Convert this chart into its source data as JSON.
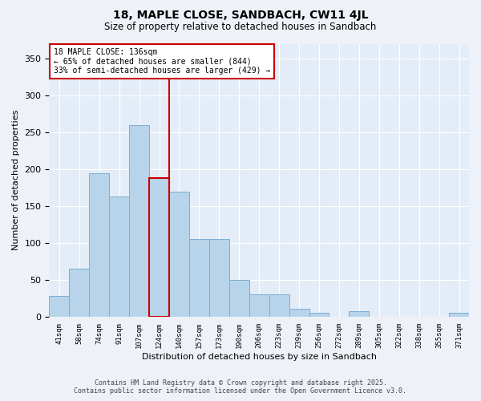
{
  "title_line1": "18, MAPLE CLOSE, SANDBACH, CW11 4JL",
  "title_line2": "Size of property relative to detached houses in Sandbach",
  "xlabel": "Distribution of detached houses by size in Sandbach",
  "ylabel": "Number of detached properties",
  "footer_line1": "Contains HM Land Registry data © Crown copyright and database right 2025.",
  "footer_line2": "Contains public sector information licensed under the Open Government Licence v3.0.",
  "annotation_line1": "18 MAPLE CLOSE: 136sqm",
  "annotation_line2": "← 65% of detached houses are smaller (844)",
  "annotation_line3": "33% of semi-detached houses are larger (429) →",
  "bar_color": "#b8d4ea",
  "bar_edge_color": "#7aafd4",
  "highlight_color": "#cc0000",
  "red_line_x": 5.5,
  "categories": [
    "41sqm",
    "58sqm",
    "74sqm",
    "91sqm",
    "107sqm",
    "124sqm",
    "140sqm",
    "157sqm",
    "173sqm",
    "190sqm",
    "206sqm",
    "223sqm",
    "239sqm",
    "256sqm",
    "272sqm",
    "289sqm",
    "305sqm",
    "322sqm",
    "338sqm",
    "355sqm",
    "371sqm"
  ],
  "values": [
    28,
    65,
    195,
    163,
    260,
    188,
    170,
    105,
    105,
    50,
    30,
    30,
    10,
    5,
    0,
    7,
    0,
    0,
    0,
    0,
    5
  ],
  "ylim": [
    0,
    370
  ],
  "yticks": [
    0,
    50,
    100,
    150,
    200,
    250,
    300,
    350
  ],
  "background_color": "#eef2f8",
  "plot_bg_color": "#e4ecf7"
}
